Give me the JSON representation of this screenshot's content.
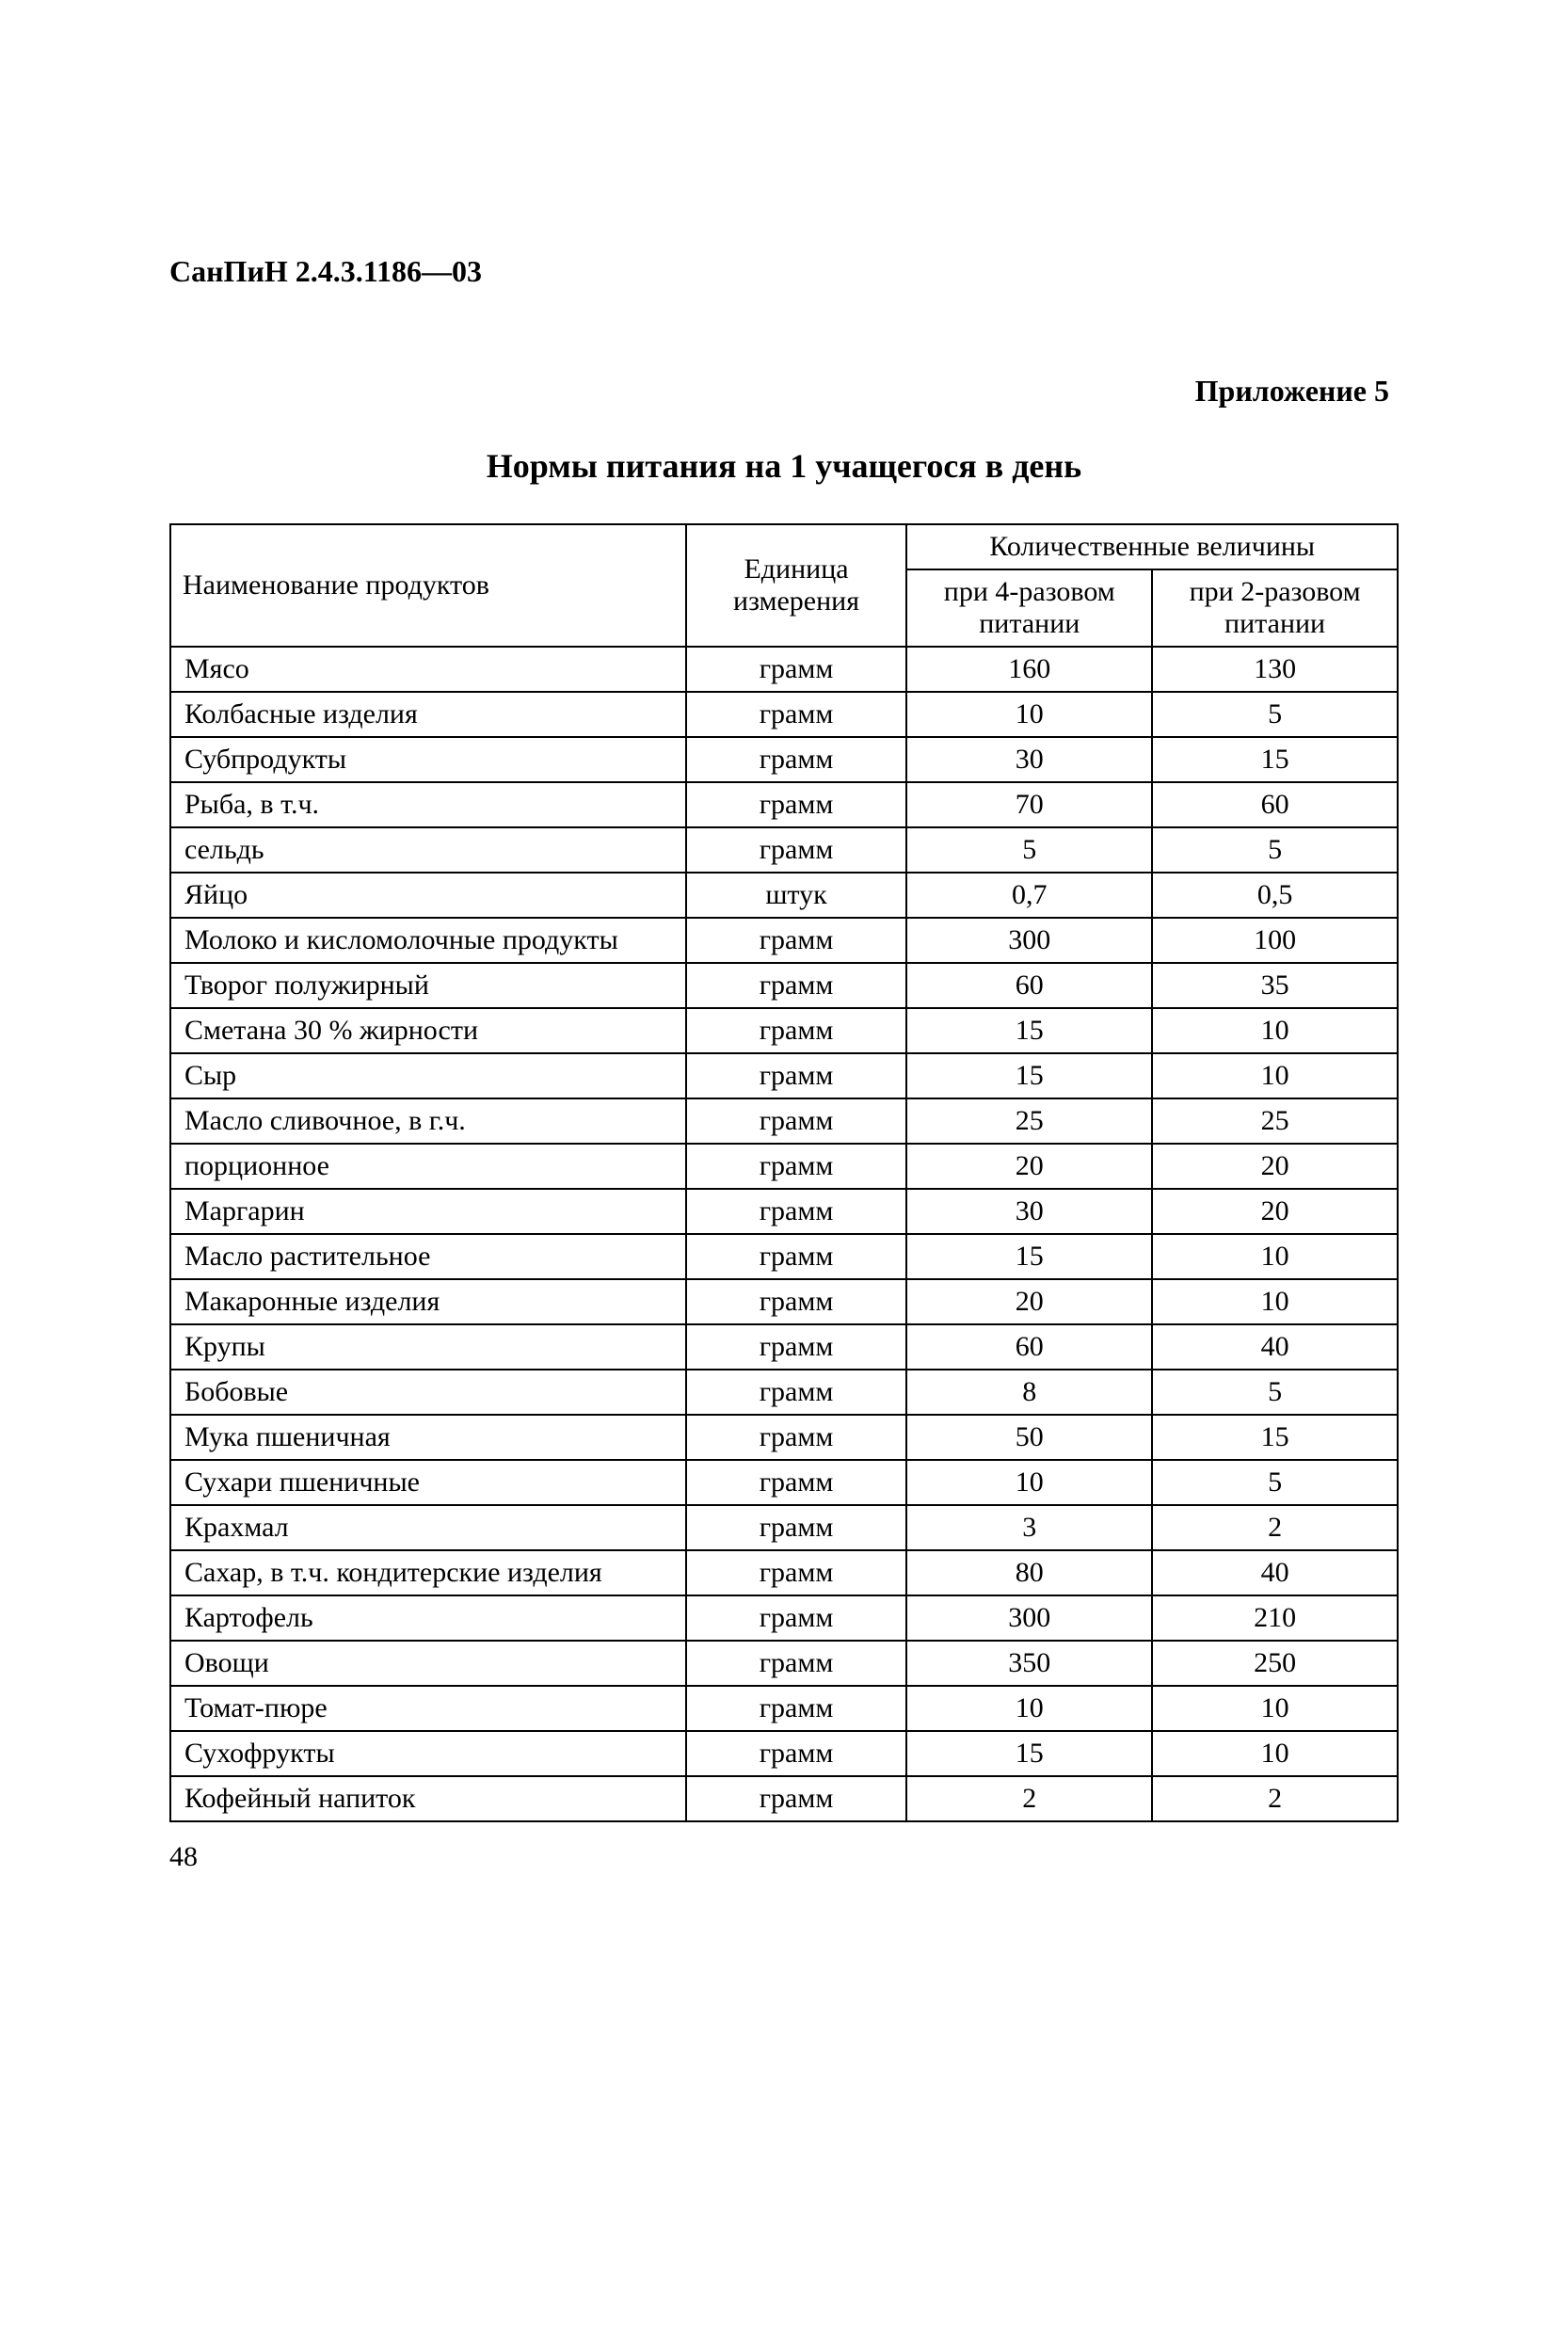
{
  "doc_header": "СанПиН 2.4.3.1186—03",
  "appendix_label": "Приложение 5",
  "page_title": "Нормы питания на 1 учащегося в день",
  "page_number": "48",
  "table": {
    "header": {
      "col_product": "Наименование продуктов",
      "col_unit": "Единица измерения",
      "col_values_group": "Количественные величины",
      "col_val4": "при 4-разовом питании",
      "col_val2": "при 2-разовом питании"
    },
    "column_widths": {
      "product": "42%",
      "unit": "18%",
      "val4": "20%",
      "val2": "20%"
    },
    "border_color": "#000000",
    "text_color": "#000000",
    "background_color": "#ffffff",
    "font_size_pt": 12,
    "rows": [
      {
        "product": "Мясо",
        "unit": "грамм",
        "val4": "160",
        "val2": "130"
      },
      {
        "product": "Колбасные изделия",
        "unit": "грамм",
        "val4": "10",
        "val2": "5"
      },
      {
        "product": "Субпродукты",
        "unit": "грамм",
        "val4": "30",
        "val2": "15"
      },
      {
        "product": "Рыба, в т.ч.",
        "unit": "грамм",
        "val4": "70",
        "val2": "60"
      },
      {
        "product": "сельдь",
        "unit": "грамм",
        "val4": "5",
        "val2": "5"
      },
      {
        "product": "Яйцо",
        "unit": "штук",
        "val4": "0,7",
        "val2": "0,5"
      },
      {
        "product": "Молоко и кисломолочные продукты",
        "unit": "грамм",
        "val4": "300",
        "val2": "100"
      },
      {
        "product": "Творог полужирный",
        "unit": "грамм",
        "val4": "60",
        "val2": "35"
      },
      {
        "product": "Сметана 30 % жирности",
        "unit": "грамм",
        "val4": "15",
        "val2": "10"
      },
      {
        "product": "Сыр",
        "unit": "грамм",
        "val4": "15",
        "val2": "10"
      },
      {
        "product": "Масло сливочное, в г.ч.",
        "unit": "грамм",
        "val4": "25",
        "val2": "25"
      },
      {
        "product": "порционное",
        "unit": "грамм",
        "val4": "20",
        "val2": "20"
      },
      {
        "product": "Маргарин",
        "unit": "грамм",
        "val4": "30",
        "val2": "20"
      },
      {
        "product": "Масло растительное",
        "unit": "грамм",
        "val4": "15",
        "val2": "10"
      },
      {
        "product": "Макаронные изделия",
        "unit": "грамм",
        "val4": "20",
        "val2": "10"
      },
      {
        "product": "Крупы",
        "unit": "грамм",
        "val4": "60",
        "val2": "40"
      },
      {
        "product": "Бобовые",
        "unit": "грамм",
        "val4": "8",
        "val2": "5"
      },
      {
        "product": "Мука пшеничная",
        "unit": "грамм",
        "val4": "50",
        "val2": "15"
      },
      {
        "product": "Сухари пшеничные",
        "unit": "грамм",
        "val4": "10",
        "val2": "5"
      },
      {
        "product": "Крахмал",
        "unit": "грамм",
        "val4": "3",
        "val2": "2"
      },
      {
        "product": "Сахар, в т.ч. кондитерские изделия",
        "unit": "грамм",
        "val4": "80",
        "val2": "40"
      },
      {
        "product": "Картофель",
        "unit": "грамм",
        "val4": "300",
        "val2": "210"
      },
      {
        "product": "Овощи",
        "unit": "грамм",
        "val4": "350",
        "val2": "250"
      },
      {
        "product": "Томат-пюре",
        "unit": "грамм",
        "val4": "10",
        "val2": "10"
      },
      {
        "product": "Сухофрукты",
        "unit": "грамм",
        "val4": "15",
        "val2": "10"
      },
      {
        "product": "Кофейный напиток",
        "unit": "грамм",
        "val4": "2",
        "val2": "2"
      }
    ]
  }
}
